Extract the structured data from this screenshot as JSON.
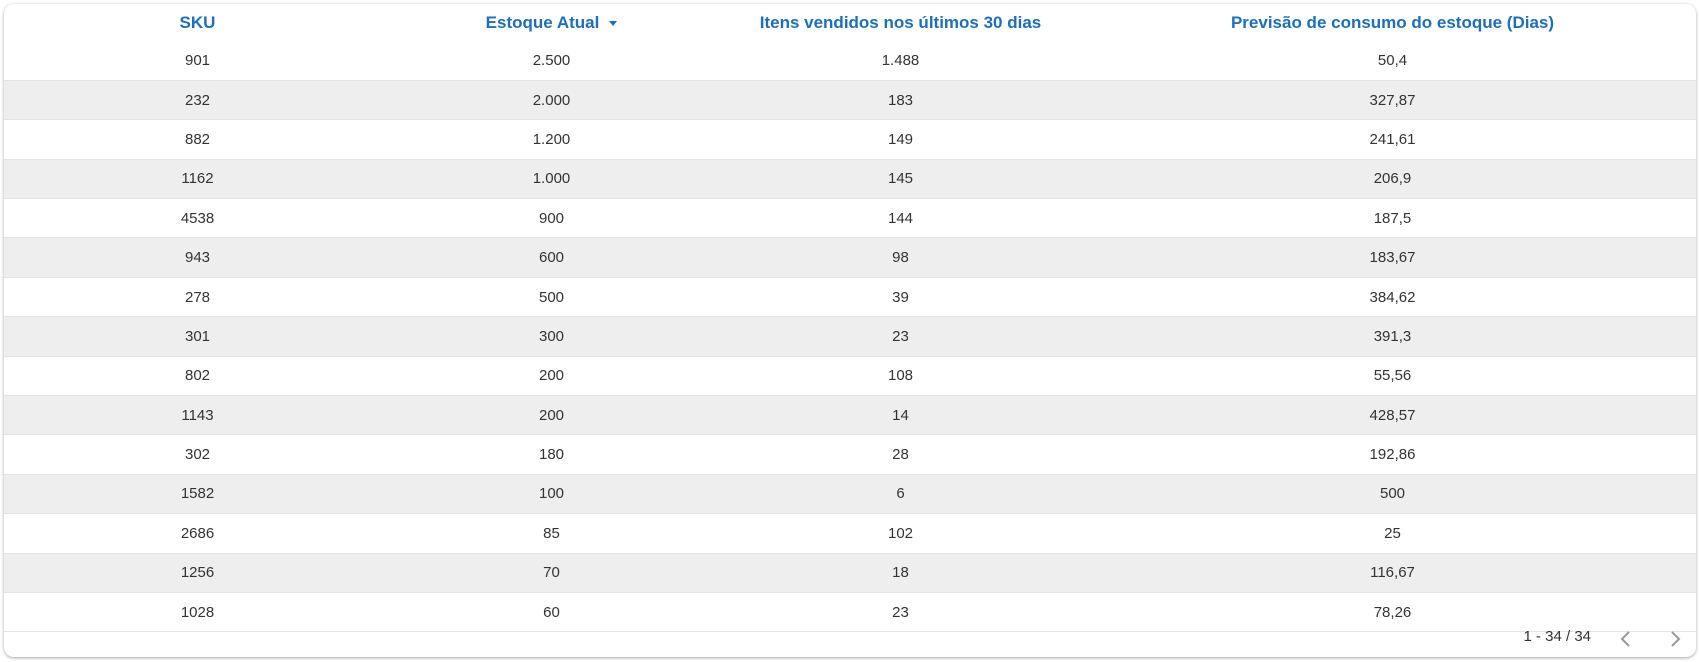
{
  "table": {
    "columns": [
      "SKU",
      "Estoque Atual",
      "Itens vendidos nos últimos 30 dias",
      "Previsão de consumo do estoque (Dias)"
    ],
    "rows": [
      [
        "901",
        "2.500",
        "1.488",
        "50,4"
      ],
      [
        "232",
        "2.000",
        "183",
        "327,87"
      ],
      [
        "882",
        "1.200",
        "149",
        "241,61"
      ],
      [
        "1162",
        "1.000",
        "145",
        "206,9"
      ],
      [
        "4538",
        "900",
        "144",
        "187,5"
      ],
      [
        "943",
        "600",
        "98",
        "183,67"
      ],
      [
        "278",
        "500",
        "39",
        "384,62"
      ],
      [
        "301",
        "300",
        "23",
        "391,3"
      ],
      [
        "802",
        "200",
        "108",
        "55,56"
      ],
      [
        "1143",
        "200",
        "14",
        "428,57"
      ],
      [
        "302",
        "180",
        "28",
        "192,86"
      ],
      [
        "1582",
        "100",
        "6",
        "500"
      ],
      [
        "2686",
        "85",
        "102",
        "25"
      ],
      [
        "1256",
        "70",
        "18",
        "116,67"
      ],
      [
        "1028",
        "60",
        "23",
        "78,26"
      ]
    ]
  },
  "pagination": "1 - 34 / 34"
}
